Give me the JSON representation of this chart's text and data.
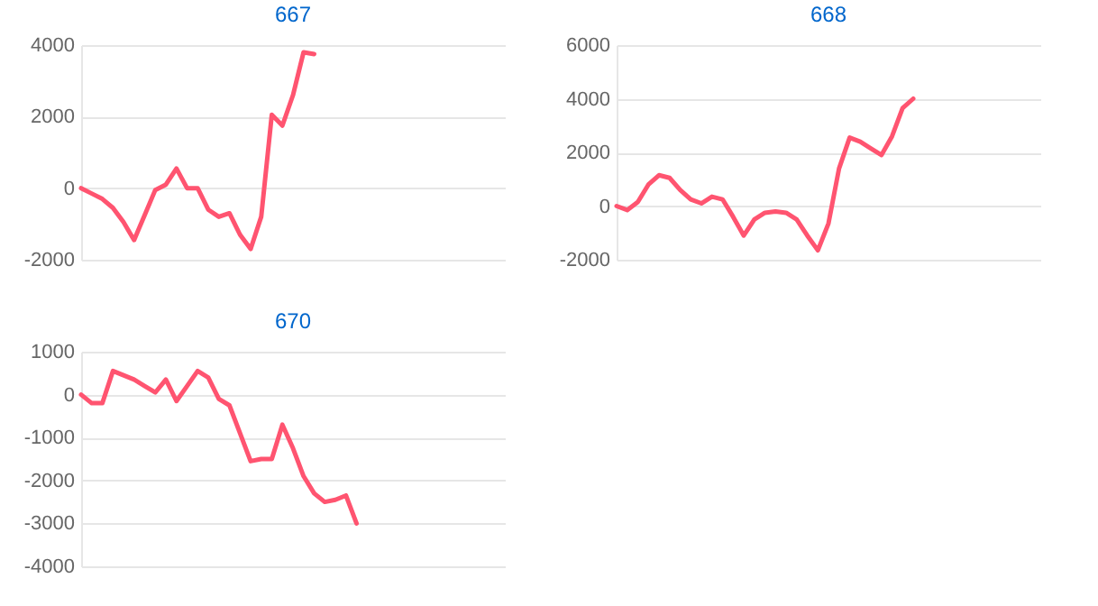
{
  "chart_data": [
    {
      "type": "line",
      "title": "667",
      "categories": [
        null,
        null,
        null,
        null,
        null,
        null,
        null,
        null,
        null,
        null,
        null,
        null,
        null,
        null,
        null,
        null,
        null,
        null,
        null,
        null,
        null,
        null,
        null,
        null,
        null,
        null,
        null,
        null,
        null,
        null,
        null,
        null,
        null,
        null,
        null,
        null,
        null,
        null,
        null,
        null,
        null
      ],
      "series": [
        {
          "color": "#ff5470",
          "values": [
            0,
            -150,
            -300,
            -550,
            -950,
            -1450,
            -750,
            -50,
            100,
            550,
            0,
            0,
            -600,
            -800,
            -700,
            -1300,
            -1700,
            -800,
            2050,
            1750,
            2600,
            3800,
            3750,
            null,
            null,
            null,
            null,
            null,
            null,
            null,
            null,
            null,
            null,
            null,
            null,
            null,
            null,
            null,
            null,
            null,
            null
          ]
        }
      ],
      "ylim": [
        -2000,
        4000
      ],
      "yticks": [
        -2000,
        0,
        2000,
        4000
      ],
      "grid": "y",
      "tick_labels": "y",
      "marker": "none",
      "line_style": "solid"
    },
    {
      "type": "line",
      "title": "668",
      "categories": [
        null,
        null,
        null,
        null,
        null,
        null,
        null,
        null,
        null,
        null,
        null,
        null,
        null,
        null,
        null,
        null,
        null,
        null,
        null,
        null,
        null,
        null,
        null,
        null,
        null,
        null,
        null,
        null,
        null,
        null,
        null,
        null,
        null,
        null,
        null,
        null,
        null,
        null,
        null,
        null,
        null
      ],
      "series": [
        {
          "color": "#ff5470",
          "values": [
            0,
            -150,
            150,
            800,
            1150,
            1050,
            600,
            250,
            100,
            350,
            250,
            -400,
            -1100,
            -500,
            -250,
            -200,
            -250,
            -500,
            -1100,
            -1650,
            -650,
            1400,
            2550,
            2400,
            2150,
            1900,
            2600,
            3650,
            4000,
            null,
            null,
            null,
            null,
            null,
            null,
            null,
            null,
            null,
            null,
            null,
            null
          ]
        }
      ],
      "ylim": [
        -2000,
        6000
      ],
      "yticks": [
        -2000,
        0,
        2000,
        4000,
        6000
      ],
      "grid": "y",
      "tick_labels": "y",
      "marker": "none",
      "line_style": "solid"
    },
    {
      "type": "line",
      "title": "670",
      "categories": [
        null,
        null,
        null,
        null,
        null,
        null,
        null,
        null,
        null,
        null,
        null,
        null,
        null,
        null,
        null,
        null,
        null,
        null,
        null,
        null,
        null,
        null,
        null,
        null,
        null,
        null,
        null,
        null,
        null,
        null,
        null,
        null,
        null,
        null,
        null,
        null,
        null,
        null,
        null,
        null,
        null
      ],
      "series": [
        {
          "color": "#ff5470",
          "values": [
            0,
            -200,
            -200,
            550,
            450,
            350,
            200,
            50,
            350,
            -150,
            200,
            550,
            400,
            -100,
            -250,
            -900,
            -1550,
            -1500,
            -1500,
            -700,
            -1250,
            -1900,
            -2300,
            -2500,
            -2450,
            -2350,
            -3000,
            null,
            null,
            null,
            null,
            null,
            null,
            null,
            null,
            null,
            null,
            null,
            null,
            null,
            null
          ]
        }
      ],
      "ylim": [
        -4000,
        1000
      ],
      "yticks": [
        -4000,
        -3000,
        -2000,
        -1000,
        0,
        1000
      ],
      "grid": "y",
      "tick_labels": "y",
      "marker": "none",
      "line_style": "solid"
    }
  ]
}
